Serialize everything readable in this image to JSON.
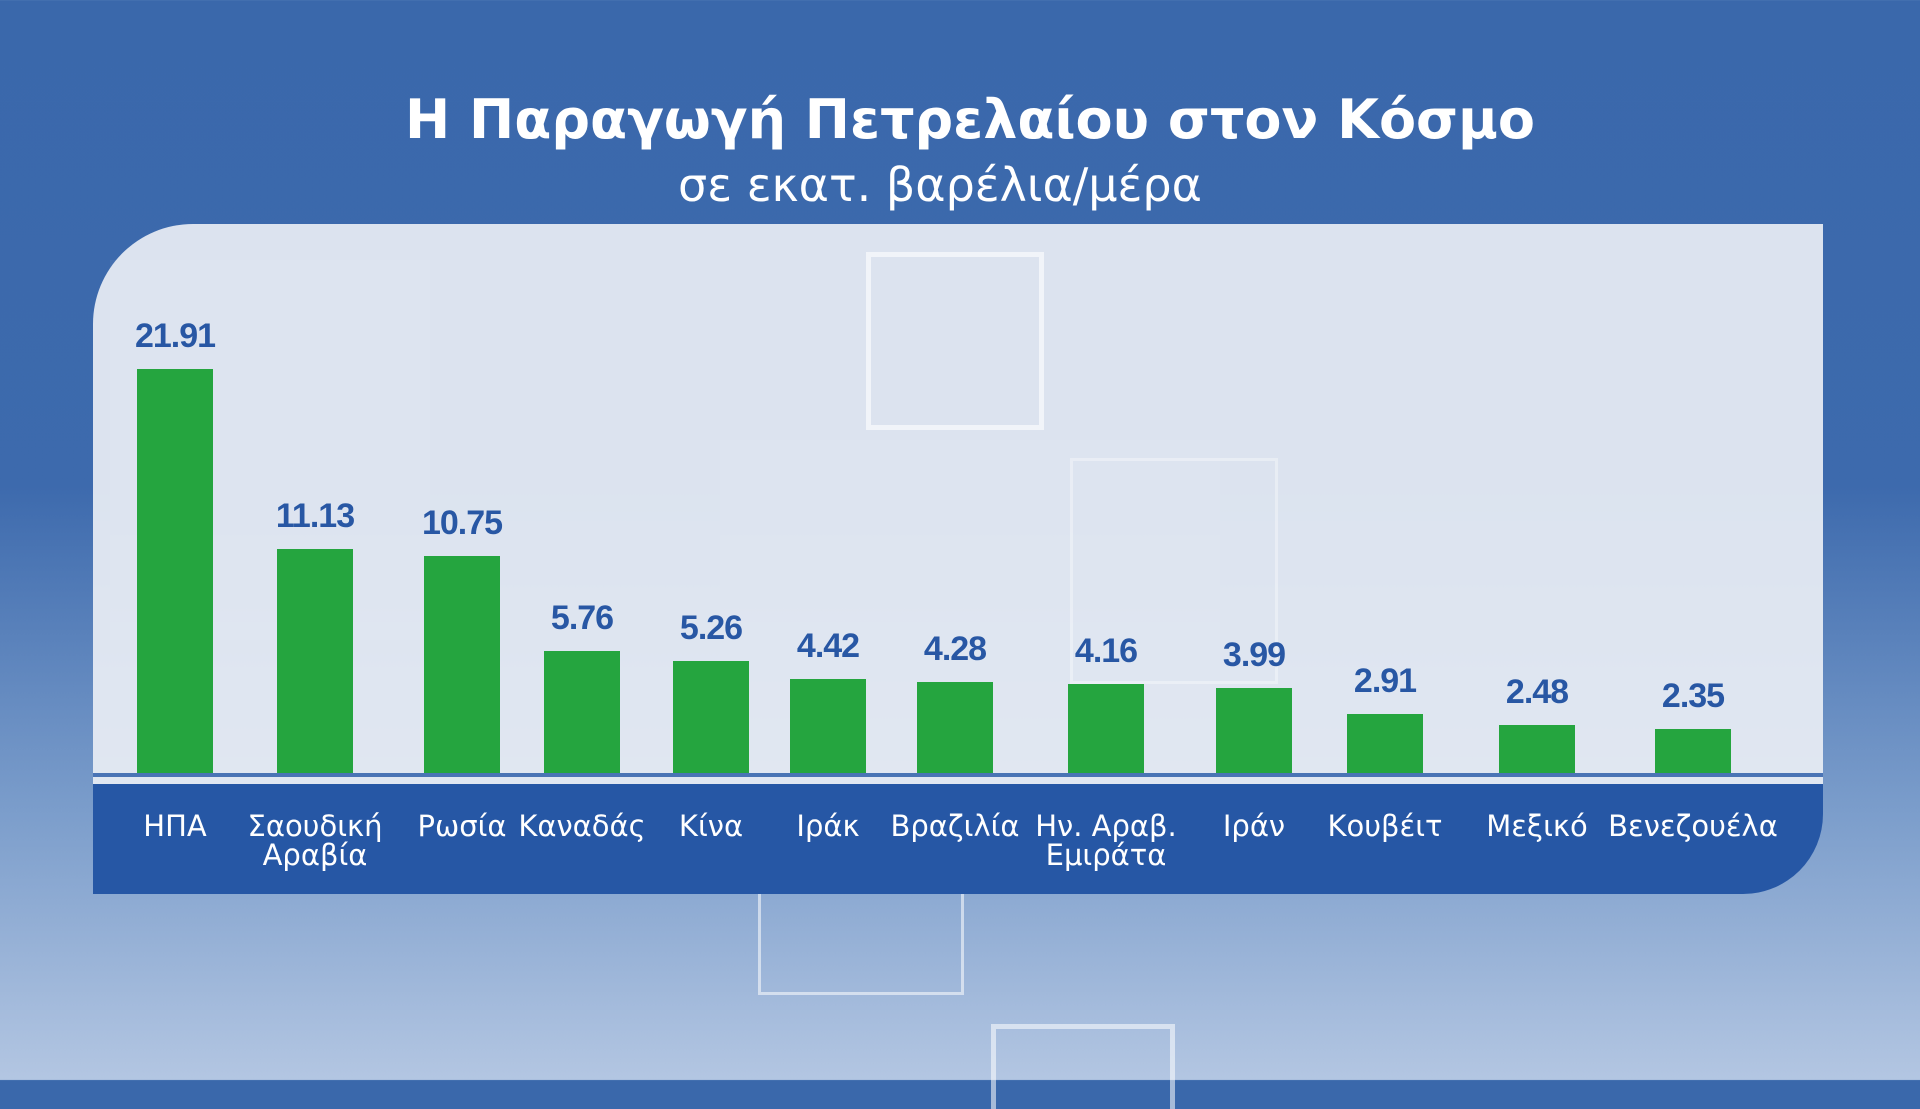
{
  "chart_data": {
    "type": "bar",
    "title": "Η Παραγωγή Πετρελαίου στον Κόσμο",
    "subtitle": "σε εκατ. βαρέλια/μέρα",
    "categories": [
      "ΗΠΑ",
      "Σαουδική Αραβία",
      "Ρωσία",
      "Καναδάς",
      "Κίνα",
      "Ιράκ",
      "Βραζιλία",
      "Ην. Αραβ. Εμιράτα",
      "Ιράν",
      "Κουβέιτ",
      "Μεξικό",
      "Βενεζουέλα"
    ],
    "values": [
      21.91,
      11.13,
      10.75,
      5.76,
      5.26,
      4.42,
      4.28,
      4.16,
      3.99,
      2.91,
      2.48,
      2.35
    ],
    "value_labels": [
      "21.91",
      "11.13",
      "10.75",
      "5.76",
      "5.26",
      "4.42",
      "4.28",
      "4.16",
      "3.99",
      "2.91",
      "2.48",
      "2.35"
    ],
    "xlabel": "",
    "ylabel": "",
    "grid": false,
    "colors": {
      "bar": "#25a53f",
      "label": "#2857a4",
      "band": "#2657a5"
    }
  }
}
